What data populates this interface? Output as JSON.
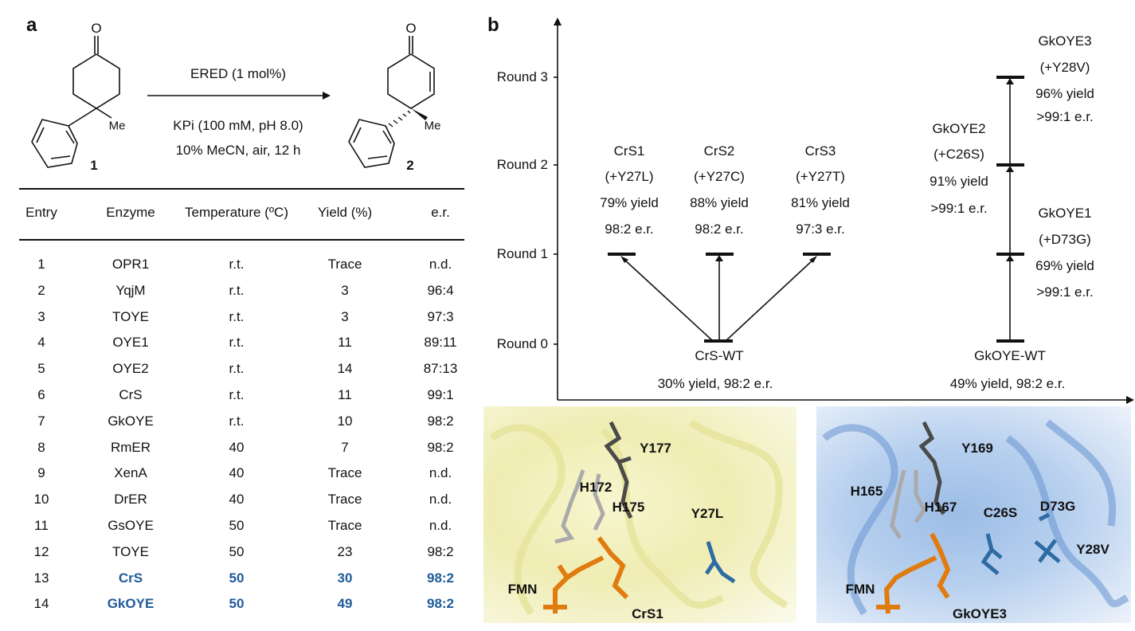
{
  "panel_a": {
    "label": "a",
    "scheme": {
      "reagent": "ERED (1 mol%)",
      "conditions1": "KPi (100 mM, pH 8.0)",
      "conditions2": "10% MeCN, air, 12 h",
      "sm_label": "1",
      "product_label": "2",
      "oxygen": "O",
      "methyl": "Me"
    },
    "table": {
      "headers": [
        "Entry",
        "Enzyme",
        "Temperature (ºC)",
        "Yield (%)",
        "e.r."
      ],
      "rows": [
        [
          "1",
          "OPR1",
          "r.t.",
          "Trace",
          "n.d."
        ],
        [
          "2",
          "YqjM",
          "r.t.",
          "3",
          "96:4"
        ],
        [
          "3",
          "TOYE",
          "r.t.",
          "3",
          "97:3"
        ],
        [
          "4",
          "OYE1",
          "r.t.",
          "11",
          "89:11"
        ],
        [
          "5",
          "OYE2",
          "r.t.",
          "14",
          "87:13"
        ],
        [
          "6",
          "CrS",
          "r.t.",
          "11",
          "99:1"
        ],
        [
          "7",
          "GkOYE",
          "r.t.",
          "10",
          "98:2"
        ],
        [
          "8",
          "RmER",
          "40",
          "7",
          "98:2"
        ],
        [
          "9",
          "XenA",
          "40",
          "Trace",
          "n.d."
        ],
        [
          "10",
          "DrER",
          "40",
          "Trace",
          "n.d."
        ],
        [
          "11",
          "GsOYE",
          "50",
          "Trace",
          "n.d."
        ],
        [
          "12",
          "TOYE",
          "50",
          "23",
          "98:2"
        ],
        [
          "13",
          "CrS",
          "50",
          "30",
          "98:2"
        ],
        [
          "14",
          "GkOYE",
          "50",
          "49",
          "98:2"
        ]
      ],
      "highlighted_rows": [
        "13",
        "14"
      ],
      "highlight_color": "#1f5b9a"
    }
  },
  "panel_b": {
    "label": "b",
    "rounds": [
      "Round 0",
      "Round 1",
      "Round 2",
      "Round 3"
    ],
    "crs": {
      "wt": {
        "name": "CrS-WT",
        "stats": "30% yield, 98:2 e.r."
      },
      "variants": [
        {
          "name": "CrS1",
          "mutation": "(+Y27L)",
          "yield": "79% yield",
          "er": "98:2 e.r."
        },
        {
          "name": "CrS2",
          "mutation": "(+Y27C)",
          "yield": "88% yield",
          "er": "98:2 e.r."
        },
        {
          "name": "CrS3",
          "mutation": "(+Y27T)",
          "yield": "81% yield",
          "er": "97:3 e.r."
        }
      ]
    },
    "gkoye": {
      "wt": {
        "name": "GkOYE-WT",
        "stats": "49% yield, 98:2 e.r."
      },
      "variants": [
        {
          "name": "GkOYE1",
          "mutation": "(+D73G)",
          "yield": "69% yield",
          "er": ">99:1 e.r."
        },
        {
          "name": "GkOYE2",
          "mutation": "(+C26S)",
          "yield": "91% yield",
          "er": ">99:1 e.r."
        },
        {
          "name": "GkOYE3",
          "mutation": "(+Y28V)",
          "yield": "96% yield",
          "er": ">99:1 e.r."
        }
      ]
    },
    "structures": [
      {
        "name": "CrS1",
        "color": "#e8e6a0",
        "residues": [
          "Y177",
          "H172",
          "H175",
          "Y27L",
          "FMN"
        ]
      },
      {
        "name": "GkOYE3",
        "color": "#7fa8d8",
        "residues": [
          "Y169",
          "H165",
          "H167",
          "C26S",
          "D73G",
          "Y28V",
          "FMN"
        ]
      }
    ]
  }
}
